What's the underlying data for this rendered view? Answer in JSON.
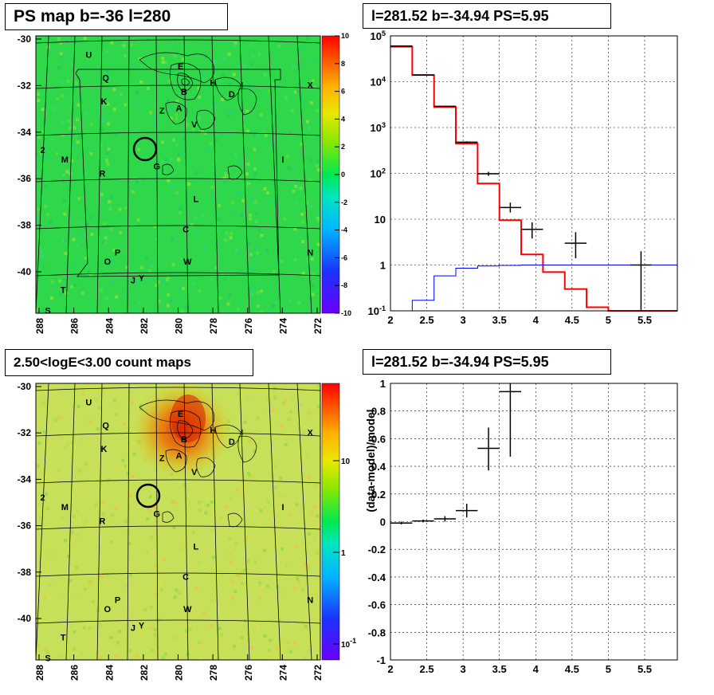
{
  "panels": {
    "map1_title": "PS map b=-36 l=280",
    "spec_title": "l=281.52 b=-34.94 PS=5.95",
    "map2_title": "2.50<logE<3.00 count maps",
    "resid_title": "l=281.52 b=-34.94 PS=5.95"
  },
  "chart_data": [
    {
      "type": "heatmap",
      "title": "PS map b=-36 l=280",
      "x_ticks": [
        "288",
        "286",
        "284",
        "282",
        "280",
        "278",
        "276",
        "274",
        "272"
      ],
      "y_ticks": [
        "-30",
        "-32",
        "-34",
        "-36",
        "-38",
        "-40"
      ],
      "colorbar": {
        "ticks": [
          "10",
          "8",
          "6",
          "4",
          "2",
          "0",
          "-2",
          "-4",
          "-6",
          "-8",
          "-10"
        ],
        "range": [
          -10,
          10
        ]
      },
      "markers": [
        {
          "text": "U",
          "l": 285.2,
          "b": -30.8
        },
        {
          "text": "Q",
          "l": 284.2,
          "b": -31.8
        },
        {
          "text": "K",
          "l": 284.3,
          "b": -32.8
        },
        {
          "text": "E",
          "l": 279.8,
          "b": -31.3
        },
        {
          "text": "B",
          "l": 279.6,
          "b": -32.4
        },
        {
          "text": "H",
          "l": 277.9,
          "b": -32.0
        },
        {
          "text": "I",
          "l": 276.2,
          "b": -32.1
        },
        {
          "text": "D",
          "l": 276.8,
          "b": -32.5
        },
        {
          "text": "X",
          "l": 272.2,
          "b": -32.1
        },
        {
          "text": "Z",
          "l": 280.9,
          "b": -33.2
        },
        {
          "text": "A",
          "l": 279.9,
          "b": -33.1
        },
        {
          "text": "V",
          "l": 279.0,
          "b": -33.8
        },
        {
          "text": "2",
          "l": 287.9,
          "b": -34.9
        },
        {
          "text": "M",
          "l": 286.6,
          "b": -35.3
        },
        {
          "text": "G",
          "l": 281.2,
          "b": -35.6
        },
        {
          "text": "I",
          "l": 273.8,
          "b": -35.3
        },
        {
          "text": "R",
          "l": 284.4,
          "b": -35.9
        },
        {
          "text": "L",
          "l": 278.9,
          "b": -37.0
        },
        {
          "text": "C",
          "l": 279.5,
          "b": -38.3
        },
        {
          "text": "P",
          "l": 283.5,
          "b": -39.3
        },
        {
          "text": "O",
          "l": 284.1,
          "b": -39.7
        },
        {
          "text": "W",
          "l": 279.4,
          "b": -39.7
        },
        {
          "text": "N",
          "l": 272.2,
          "b": -39.3
        },
        {
          "text": "T",
          "l": 286.7,
          "b": -40.9
        },
        {
          "text": "J",
          "l": 282.6,
          "b": -40.5
        },
        {
          "text": "Y",
          "l": 282.1,
          "b": -40.4
        },
        {
          "text": "S",
          "l": 287.6,
          "b": -41.8
        }
      ],
      "ps_circle": {
        "l": 281.52,
        "b": -34.94
      }
    },
    {
      "type": "line",
      "title": "l=281.52 b=-34.94 PS=5.95",
      "x_ticks": [
        "2",
        "2.5",
        "3",
        "3.5",
        "4",
        "4.5",
        "5",
        "5.5"
      ],
      "y_ticks": [
        "10^-1",
        "1",
        "10",
        "10^2",
        "10^3",
        "10^4",
        "10^5"
      ],
      "xlim": [
        2,
        5.95
      ],
      "ylim": [
        0.1,
        100000
      ],
      "yscale": "log",
      "series": [
        {
          "color": "#ff0000",
          "bin_edges": [
            2,
            2.3,
            2.6,
            2.9,
            3.2,
            3.5,
            3.8,
            4.1,
            4.4,
            4.7,
            5.0,
            5.3,
            5.95
          ],
          "values": [
            58000,
            14000,
            2800,
            450,
            60,
            9.5,
            1.7,
            0.7,
            0.3,
            0.12,
            0.1,
            0.1
          ]
        },
        {
          "color": "#0000ff",
          "bin_edges": [
            2,
            2.3,
            2.6,
            2.9,
            3.2,
            3.5,
            3.8,
            4.1,
            4.4,
            4.7,
            5.0,
            5.3,
            5.95
          ],
          "values": [
            0.1,
            0.17,
            0.58,
            0.85,
            0.95,
            0.98,
            1.0,
            1.0,
            1.0,
            1.0,
            1.0,
            1.0
          ]
        },
        {
          "color": "#000000",
          "points": [
            {
              "x": 2.15,
              "y": 60000,
              "xerr": 0.15,
              "ylo": 59500,
              "yhi": 60500
            },
            {
              "x": 2.45,
              "y": 14000,
              "xerr": 0.15,
              "ylo": 13800,
              "yhi": 14200
            },
            {
              "x": 2.75,
              "y": 2900,
              "xerr": 0.15,
              "ylo": 2850,
              "yhi": 2950
            },
            {
              "x": 3.05,
              "y": 480,
              "xerr": 0.15,
              "ylo": 460,
              "yhi": 500
            },
            {
              "x": 3.35,
              "y": 98,
              "xerr": 0.15,
              "ylo": 88,
              "yhi": 108
            },
            {
              "x": 3.65,
              "y": 18,
              "xerr": 0.15,
              "ylo": 14,
              "yhi": 23
            },
            {
              "x": 3.95,
              "y": 6,
              "xerr": 0.15,
              "ylo": 3.8,
              "yhi": 8.5
            },
            {
              "x": 4.55,
              "y": 3,
              "xerr": 0.15,
              "ylo": 1.4,
              "yhi": 5.2
            },
            {
              "x": 5.45,
              "y": 1,
              "xerr": 0.15,
              "ylo": 0.1,
              "yhi": 2.0
            }
          ]
        }
      ]
    },
    {
      "type": "heatmap",
      "title": "2.50<logE<3.00 count maps",
      "x_ticks": [
        "288",
        "286",
        "284",
        "282",
        "280",
        "278",
        "276",
        "274",
        "272"
      ],
      "y_ticks": [
        "-30",
        "-32",
        "-34",
        "-36",
        "-38",
        "-40"
      ],
      "colorbar": {
        "ticks": [
          "10",
          "1",
          "10^-1"
        ],
        "scale": "log"
      }
    },
    {
      "type": "scatter",
      "title": "l=281.52 b=-34.94 PS=5.95",
      "ylabel": "(data-model)/model",
      "x_ticks": [
        "2",
        "2.5",
        "3",
        "3.5",
        "4",
        "4.5",
        "5",
        "5.5"
      ],
      "y_ticks": [
        "1",
        "0.8",
        "0.6",
        "0.4",
        "0.2",
        "0",
        "-0.2",
        "-0.4",
        "-0.6",
        "-0.8",
        "-1"
      ],
      "xlim": [
        2,
        5.95
      ],
      "ylim": [
        -1,
        1
      ],
      "points": [
        {
          "x": 2.15,
          "y": -0.01,
          "xerr": 0.15,
          "ylo": -0.02,
          "yhi": 0.0
        },
        {
          "x": 2.45,
          "y": 0.005,
          "xerr": 0.15,
          "ylo": -0.005,
          "yhi": 0.015
        },
        {
          "x": 2.75,
          "y": 0.02,
          "xerr": 0.15,
          "ylo": 0.0,
          "yhi": 0.04
        },
        {
          "x": 3.05,
          "y": 0.08,
          "xerr": 0.15,
          "ylo": 0.03,
          "yhi": 0.13
        },
        {
          "x": 3.35,
          "y": 0.53,
          "xerr": 0.15,
          "ylo": 0.37,
          "yhi": 0.68
        },
        {
          "x": 3.65,
          "y": 0.94,
          "xerr": 0.15,
          "ylo": 0.47,
          "yhi": 1.0
        }
      ]
    }
  ]
}
